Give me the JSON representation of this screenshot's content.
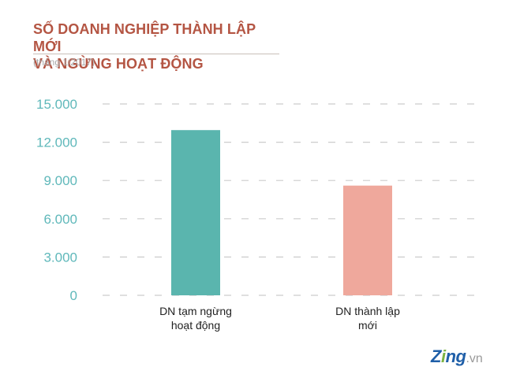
{
  "header": {
    "title_line1": "SỐ DOANH NGHIỆP THÀNH LẬP MỚI",
    "title_line2": "VÀ NGỪNG HOẠT ĐỘNG",
    "subtitle": "(tháng 1/2017)"
  },
  "colors": {
    "title": "#b45543",
    "axis_ticks": "#5fb8ba",
    "bar_suspended": "#5ab5ae",
    "bar_new": "#efa89c",
    "grid": "#cccccc"
  },
  "chart_data": {
    "type": "bar",
    "title": "SỐ DOANH NGHIỆP THÀNH LẬP MỚI VÀ NGỪNG HOẠT ĐỘNG",
    "subtitle": "(tháng 1/2017)",
    "xlabel": "",
    "ylabel": "",
    "ylim": [
      0,
      15000
    ],
    "grid": true,
    "yticks": [
      0,
      3000,
      6000,
      9000,
      12000,
      15000
    ],
    "ytick_labels": [
      "0",
      "3.000",
      "6.000",
      "9.000",
      "12.000",
      "15.000"
    ],
    "categories": [
      [
        "DN tạm ngừng",
        "hoạt động"
      ],
      [
        "DN thành lập",
        "mới"
      ]
    ],
    "values": [
      12950,
      8600
    ],
    "bar_colors": [
      "#5ab5ae",
      "#efa89c"
    ]
  },
  "logo": {
    "brand_part1": "Z",
    "brand_accent": "i",
    "brand_part2": "ng",
    "tld": ".vn"
  }
}
